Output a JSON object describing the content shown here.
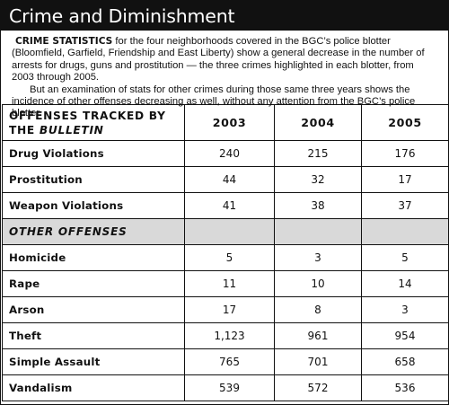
{
  "title": "Crime and Diminishment",
  "intro": {
    "lead": "CRIME STATISTICS",
    "p1_rest": " for the four neighborhoods covered in the BGC’s police blotter (Bloomfield, Garfield, Friendship and East Liberty) show a general decrease in the number of arrests for drugs, guns and prostitution — the three crimes highlighted in each blotter, from 2003 through 2005.",
    "p2": "But an examination of stats for other crimes during those same three years shows the incidence of other offenses decreasing as well, without any attention from the BGC’s police blotter."
  },
  "table": {
    "header_line1": "OFFENSES TRACKED BY",
    "header_line2a": "THE ",
    "header_line2b": "BULLETIN",
    "years": [
      "2003",
      "2004",
      "2005"
    ],
    "tracked": [
      {
        "label": "Drug Violations",
        "values": [
          "240",
          "215",
          "176"
        ]
      },
      {
        "label": "Prostitution",
        "values": [
          "44",
          "32",
          "17"
        ]
      },
      {
        "label": "Weapon Violations",
        "values": [
          "41",
          "38",
          "37"
        ]
      }
    ],
    "other_heading": "OTHER OFFENSES",
    "other": [
      {
        "label": "Homicide",
        "values": [
          "5",
          "3",
          "5"
        ]
      },
      {
        "label": "Rape",
        "values": [
          "11",
          "10",
          "14"
        ]
      },
      {
        "label": "Arson",
        "values": [
          "17",
          "8",
          "3"
        ]
      },
      {
        "label": "Theft",
        "values": [
          "1,123",
          "961",
          "954"
        ]
      },
      {
        "label": "Simple Assault",
        "values": [
          "765",
          "701",
          "658"
        ]
      },
      {
        "label": "Vandalism",
        "values": [
          "539",
          "572",
          "536"
        ]
      }
    ]
  }
}
